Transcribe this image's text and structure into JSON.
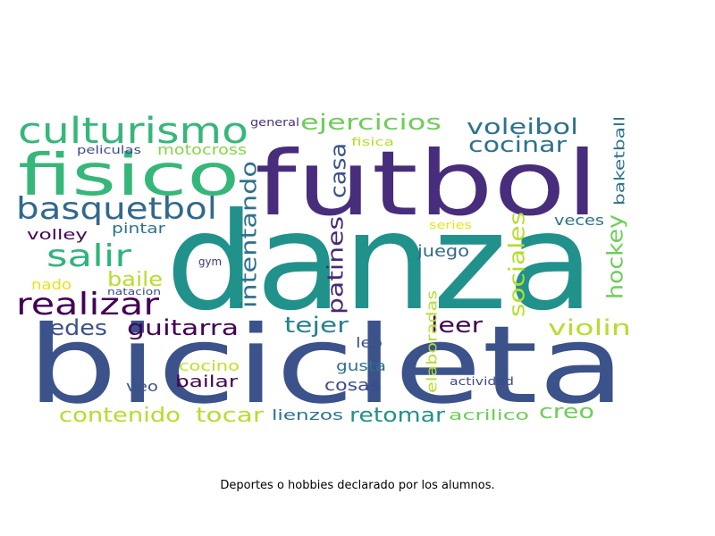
{
  "caption": "Deportes o hobbies declarado por los alumnos.",
  "words": [
    {
      "text": "danza",
      "color": "#21918c"
    },
    {
      "text": "bicicleta",
      "color": "#3b528b"
    },
    {
      "text": "futbol",
      "color": "#472d7b"
    },
    {
      "text": "fisico",
      "color": "#35b779"
    },
    {
      "text": "culturismo",
      "color": "#35b779"
    },
    {
      "text": "basquetbol",
      "color": "#31688e"
    },
    {
      "text": "salir",
      "color": "#2fb47c"
    },
    {
      "text": "realizar",
      "color": "#440154"
    },
    {
      "text": "ejercicios",
      "color": "#6ece58"
    },
    {
      "text": "voleibol",
      "color": "#2c728e"
    },
    {
      "text": "cocinar",
      "color": "#2c728e"
    },
    {
      "text": "casa",
      "color": "#3b528b"
    },
    {
      "text": "intentando",
      "color": "#2c728e"
    },
    {
      "text": "patines",
      "color": "#482878"
    },
    {
      "text": "sociales",
      "color": "#b5de2b"
    },
    {
      "text": "hockey",
      "color": "#6ece58"
    },
    {
      "text": "baketball",
      "color": "#2c728e"
    },
    {
      "text": "motocross",
      "color": "#86d549"
    },
    {
      "text": "peliculas",
      "color": "#3e4a89"
    },
    {
      "text": "general",
      "color": "#46327e"
    },
    {
      "text": "fisica",
      "color": "#b5de2b"
    },
    {
      "text": "volley",
      "color": "#440154"
    },
    {
      "text": "pintar",
      "color": "#2c728e"
    },
    {
      "text": "baile",
      "color": "#b5de2b"
    },
    {
      "text": "nado",
      "color": "#e5e419"
    },
    {
      "text": "natacion",
      "color": "#3e4a89"
    },
    {
      "text": "gym",
      "color": "#46327e"
    },
    {
      "text": "redes",
      "color": "#3b528b"
    },
    {
      "text": "guitarra",
      "color": "#440154"
    },
    {
      "text": "tejer",
      "color": "#26828e"
    },
    {
      "text": "leer",
      "color": "#440154"
    },
    {
      "text": "juego",
      "color": "#31688e"
    },
    {
      "text": "veces",
      "color": "#2c728e"
    },
    {
      "text": "series",
      "color": "#e5e419"
    },
    {
      "text": "violin",
      "color": "#b5de2b"
    },
    {
      "text": "leo",
      "color": "#3b528b"
    },
    {
      "text": "elaboradas",
      "color": "#b5de2b"
    },
    {
      "text": "cocino",
      "color": "#c2df23"
    },
    {
      "text": "gusta",
      "color": "#2c728e"
    },
    {
      "text": "veo",
      "color": "#3b528b"
    },
    {
      "text": "bailar",
      "color": "#440154"
    },
    {
      "text": "cosas",
      "color": "#3e4a89"
    },
    {
      "text": "actividad",
      "color": "#3e4a89"
    },
    {
      "text": "contenido",
      "color": "#b5de2b"
    },
    {
      "text": "tocar",
      "color": "#b5de2b"
    },
    {
      "text": "lienzos",
      "color": "#2c728e"
    },
    {
      "text": "retomar",
      "color": "#21918c"
    },
    {
      "text": "acrilico",
      "color": "#6ece58"
    },
    {
      "text": "creo",
      "color": "#6ece58"
    }
  ]
}
